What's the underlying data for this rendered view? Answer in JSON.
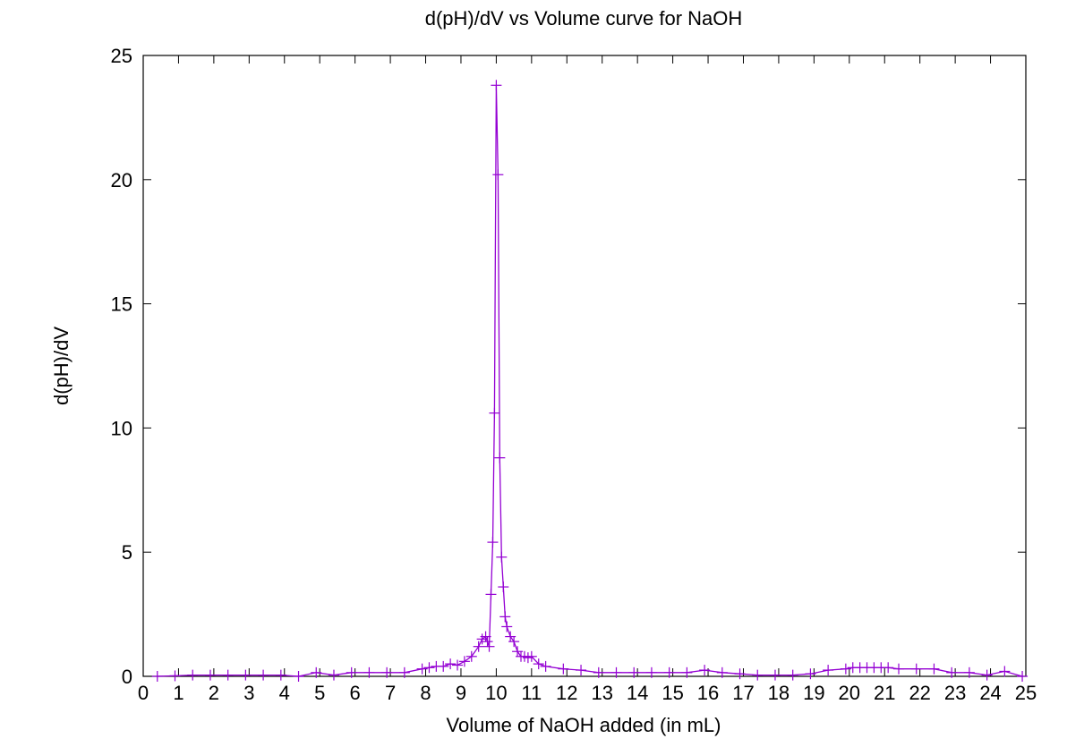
{
  "chart_data": {
    "type": "line",
    "title": "d(pH)/dV vs Volume curve for NaOH",
    "xlabel": "Volume of NaOH added (in mL)",
    "ylabel": "d(pH)/dV",
    "xlim": [
      0,
      25
    ],
    "ylim": [
      0,
      25
    ],
    "xticks": [
      0,
      1,
      2,
      3,
      4,
      5,
      6,
      7,
      8,
      9,
      10,
      11,
      12,
      13,
      14,
      15,
      16,
      17,
      18,
      19,
      20,
      21,
      22,
      23,
      24,
      25
    ],
    "yticks": [
      0,
      5,
      10,
      15,
      20,
      25
    ],
    "grid": false,
    "series": [
      {
        "color": "#9400d3",
        "marker": "plus",
        "x": [
          0.4,
          0.9,
          1.4,
          1.9,
          2.4,
          2.9,
          3.4,
          3.9,
          4.4,
          4.9,
          5.4,
          5.9,
          6.4,
          6.9,
          7.4,
          7.9,
          8.1,
          8.3,
          8.5,
          8.7,
          8.9,
          9.1,
          9.3,
          9.5,
          9.6,
          9.7,
          9.75,
          9.8,
          9.85,
          9.9,
          9.95,
          10.0,
          10.05,
          10.1,
          10.15,
          10.2,
          10.25,
          10.3,
          10.4,
          10.5,
          10.6,
          10.7,
          10.8,
          10.9,
          11.0,
          11.2,
          11.4,
          11.9,
          12.4,
          12.9,
          13.4,
          13.9,
          14.4,
          14.9,
          15.4,
          15.9,
          16.4,
          16.9,
          17.4,
          17.9,
          18.4,
          18.9,
          19.4,
          19.9,
          20.1,
          20.3,
          20.5,
          20.7,
          20.9,
          21.1,
          21.4,
          21.9,
          22.4,
          22.9,
          23.4,
          23.9,
          24.4,
          24.9
        ],
        "y": [
          0.0,
          0.02,
          0.05,
          0.05,
          0.05,
          0.05,
          0.05,
          0.05,
          0.0,
          0.15,
          0.05,
          0.15,
          0.15,
          0.15,
          0.15,
          0.3,
          0.35,
          0.4,
          0.4,
          0.5,
          0.45,
          0.6,
          0.8,
          1.2,
          1.5,
          1.6,
          1.4,
          1.2,
          3.3,
          5.4,
          10.6,
          23.8,
          20.2,
          8.8,
          4.8,
          3.6,
          2.4,
          2.0,
          1.6,
          1.4,
          1.0,
          0.8,
          0.8,
          0.75,
          0.8,
          0.5,
          0.4,
          0.3,
          0.25,
          0.15,
          0.15,
          0.15,
          0.15,
          0.15,
          0.15,
          0.25,
          0.15,
          0.1,
          0.05,
          0.05,
          0.05,
          0.1,
          0.25,
          0.3,
          0.35,
          0.35,
          0.35,
          0.35,
          0.35,
          0.35,
          0.3,
          0.3,
          0.3,
          0.15,
          0.15,
          0.05,
          0.2,
          0.0
        ]
      }
    ]
  }
}
